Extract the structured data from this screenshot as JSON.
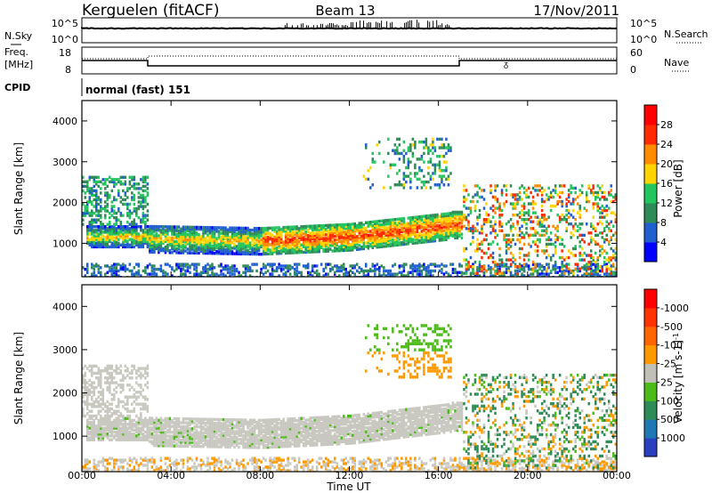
{
  "header": {
    "station": "Kerguelen (fitACF)",
    "beam": "Beam 13",
    "date": "17/Nov/2011"
  },
  "strip_nsky": {
    "left_label": "N.Sky",
    "right_label": "N.Search",
    "left_ticks": [
      "10^5",
      "10^0"
    ],
    "right_ticks": [
      "10^5",
      "10^0"
    ]
  },
  "strip_freq": {
    "left_label_1": "Freq.",
    "left_label_2": "[MHz]",
    "right_label": "Nave",
    "left_ticks": [
      "18",
      "8"
    ],
    "right_ticks": [
      "60",
      "0"
    ]
  },
  "strip_cpid": {
    "label": "CPID",
    "value": "normal (fast) 151"
  },
  "chart_data": [
    {
      "type": "heatmap",
      "title": "",
      "xlabel": "Time UT",
      "ylabel": "Slant Range [km]",
      "colorbar_label": "Power [dB]",
      "colorbar_ticks": [
        4,
        8,
        12,
        16,
        20,
        24,
        28
      ],
      "colorbar_colors": [
        "#0000ff",
        "#1f5fd0",
        "#2e8b57",
        "#22c55e",
        "#ffd400",
        "#ff8c00",
        "#ff2a00",
        "#ff0000"
      ],
      "xlim": [
        "00:00",
        "24:00"
      ],
      "ylim": [
        180,
        4500
      ],
      "yticks": [
        1000,
        2000,
        3000,
        4000
      ],
      "xticks": [
        "00:00",
        "04:00",
        "08:00",
        "12:00",
        "16:00",
        "20:00",
        "00:00"
      ],
      "series": [
        {
          "region": "main_band",
          "time_start_h": 3.0,
          "time_end_h": 17.0,
          "range_center_km": [
            1250,
            1200,
            1150,
            1250,
            1450
          ],
          "value_db": 20
        },
        {
          "region": "early_scatter",
          "time_start_h": 0.0,
          "time_end_h": 3.0,
          "range_center_km": [
            2100,
            1200
          ],
          "value_db": 10
        },
        {
          "region": "near_range",
          "time_start_h": 0.0,
          "time_end_h": 24.0,
          "range_center_km": [
            400
          ],
          "value_db": 8
        },
        {
          "region": "far_cluster",
          "time_start_h": 12.5,
          "time_end_h": 16.5,
          "range_center_km": [
            2800,
            3300
          ],
          "value_db": 12
        },
        {
          "region": "late_patches",
          "time_start_h": 17.0,
          "time_end_h": 24.0,
          "range_center_km": [
            1800,
            900
          ],
          "value_db": 22
        }
      ]
    },
    {
      "type": "heatmap",
      "title": "",
      "xlabel": "Time UT",
      "ylabel": "Slant Range [km]",
      "colorbar_label": "Velocity [m s-1]",
      "colorbar_ticks": [
        1000,
        500,
        100,
        25,
        -25,
        -100,
        -500,
        -1000
      ],
      "colorbar_colors": [
        "#2a3fc0",
        "#1f78b4",
        "#2e8b57",
        "#4cbb17",
        "#c0c0b8",
        "#ff9900",
        "#ff6600",
        "#ff3300",
        "#ff0000"
      ],
      "xlim": [
        "00:00",
        "24:00"
      ],
      "ylim": [
        180,
        4500
      ],
      "yticks": [
        1000,
        2000,
        3000,
        4000
      ],
      "xticks": [
        "00:00",
        "04:00",
        "08:00",
        "12:00",
        "16:00",
        "20:00",
        "00:00"
      ],
      "series": [
        {
          "region": "main_band_ground",
          "time_start_h": 3.0,
          "time_end_h": 17.0,
          "range_center_km": [
            1250,
            1200,
            1150,
            1250,
            1450
          ],
          "value_ms": 0
        },
        {
          "region": "far_cluster",
          "time_start_h": 14.0,
          "time_end_h": 16.5,
          "range_center_km": [
            3300
          ],
          "value_ms": 200
        },
        {
          "region": "late_patches",
          "time_start_h": 17.0,
          "time_end_h": 24.0,
          "range_center_km": [
            1700
          ],
          "value_ms": 300
        }
      ]
    }
  ],
  "unit_sup": "-1",
  "colors": {
    "ground_scatter": "#c8c8c0",
    "frame": "#000000"
  }
}
